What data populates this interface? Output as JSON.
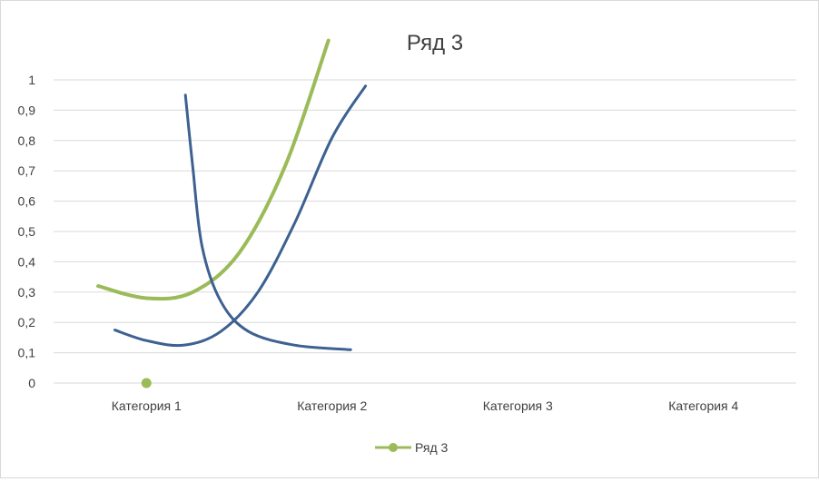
{
  "chart_data": {
    "type": "line",
    "title": "Ряд 3",
    "xlabel": "",
    "ylabel": "",
    "categories": [
      "Категория 1",
      "Категория 2",
      "Категория 3",
      "Категория 4"
    ],
    "ylim": [
      0,
      1
    ],
    "yticks": [
      "0",
      "0,1",
      "0,2",
      "0,3",
      "0,4",
      "0,5",
      "0,6",
      "0,7",
      "0,8",
      "0,9",
      "1"
    ],
    "grid": true,
    "legend_position": "bottom",
    "series": [
      {
        "name": "Ряд 3",
        "color": "#9BBB59",
        "marker": "circle",
        "values": [
          0,
          null,
          null,
          null
        ]
      }
    ],
    "overlay_curves": [
      {
        "color": "#9BBB59",
        "points": [
          [
            -0.26,
            0.32
          ],
          [
            0.0,
            0.28
          ],
          [
            0.25,
            0.3
          ],
          [
            0.5,
            0.43
          ],
          [
            0.75,
            0.72
          ],
          [
            0.98,
            1.13
          ]
        ]
      },
      {
        "color": "#3D6190",
        "points": [
          [
            0.21,
            0.95
          ],
          [
            0.25,
            0.71
          ],
          [
            0.3,
            0.45
          ],
          [
            0.4,
            0.27
          ],
          [
            0.55,
            0.17
          ],
          [
            0.8,
            0.125
          ],
          [
            1.1,
            0.11
          ]
        ]
      },
      {
        "color": "#3D6190",
        "points": [
          [
            -0.17,
            0.175
          ],
          [
            0.0,
            0.14
          ],
          [
            0.2,
            0.125
          ],
          [
            0.4,
            0.17
          ],
          [
            0.6,
            0.3
          ],
          [
            0.8,
            0.53
          ],
          [
            1.0,
            0.81
          ],
          [
            1.18,
            0.98
          ]
        ]
      }
    ]
  }
}
